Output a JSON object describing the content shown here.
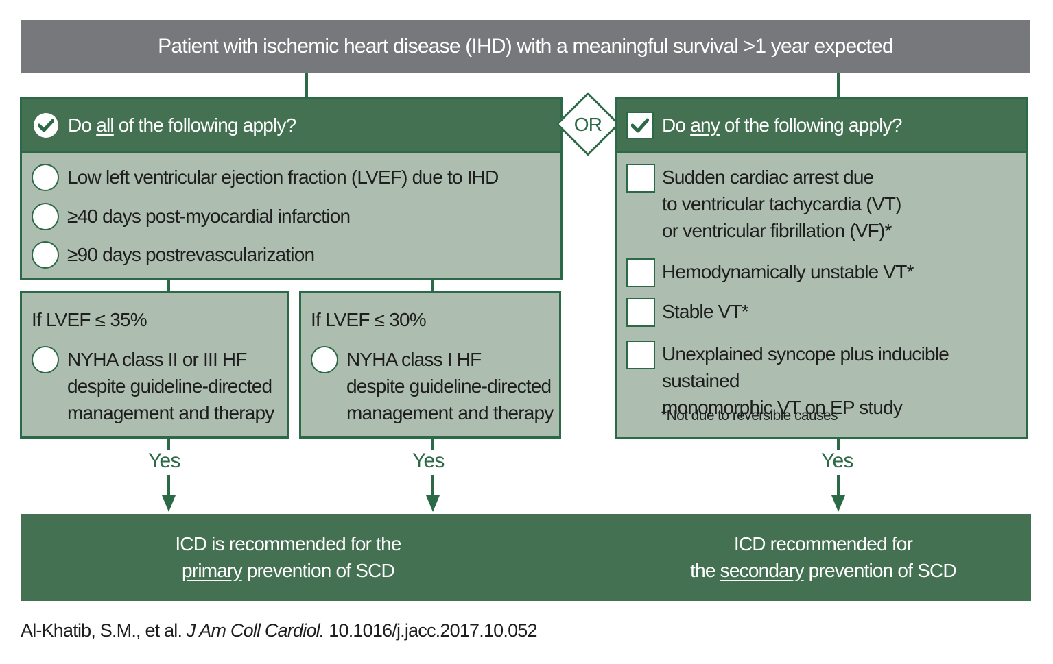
{
  "top_banner": {
    "text": "Patient with ischemic heart disease (IHD) with a meaningful survival >1 year expected"
  },
  "connector": {
    "or_label": "OR"
  },
  "left_panel": {
    "header_pre": "Do ",
    "header_em": "all",
    "header_post": " of the following apply?",
    "items": [
      "Low left ventricular ejection fraction (LVEF) due to IHD",
      "≥40 days post-myocardial infarction",
      "≥90 days postrevascularization"
    ]
  },
  "lvef35": {
    "title": "If LVEF ≤ 35%",
    "lines": [
      "NYHA class II or III HF",
      "despite guideline-directed",
      "management and therapy"
    ]
  },
  "lvef30": {
    "title": "If LVEF ≤ 30%",
    "lines": [
      "NYHA class I HF",
      "despite guideline-directed",
      "management and therapy"
    ]
  },
  "right_panel": {
    "header_pre": "Do ",
    "header_em": "any",
    "header_post": " of the following apply?",
    "item1": [
      "Sudden cardiac arrest due",
      "to ventricular tachycardia (VT)",
      "or ventricular fibrillation (VF)*"
    ],
    "item2": "Hemodynamically unstable VT*",
    "item3": "Stable VT*",
    "item4": [
      "Unexplained syncope plus inducible sustained",
      "monomorphic VT on EP study"
    ],
    "footnote": "*Not due to reversible causes"
  },
  "yes_label": "Yes",
  "primary_rec": {
    "line1": "ICD is recommended for the",
    "em": "primary",
    "line2_post": " prevention of SCD"
  },
  "secondary_rec": {
    "line1": "ICD recommended for",
    "line2_pre": "the ",
    "em": "secondary",
    "line2_post": " prevention of SCD"
  },
  "citation": {
    "authors": "Al-Khatib, S.M., et al.",
    "journal": "J Am Coll Cardiol.",
    "doi": "10.1016/j.jacc.2017.10.052"
  },
  "colors": {
    "dark_green": "#457153",
    "line_green": "#2c6a47",
    "light_green": "#adbeb0",
    "banner_gray": "#77787b"
  },
  "icons": [
    "check-circle-icon",
    "check-square-icon"
  ]
}
